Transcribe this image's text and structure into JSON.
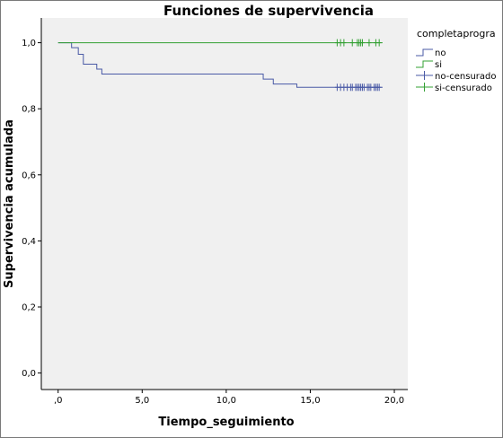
{
  "chart_data": {
    "type": "line",
    "step": true,
    "title": "Funciones de supervivencia",
    "xlabel": "Tiempo_seguimiento",
    "ylabel": "Supervivencia acumulada",
    "xlim": [
      -1.0,
      20.8
    ],
    "ylim": [
      -0.05,
      1.075
    ],
    "x_ticks": [
      0,
      5,
      10,
      15,
      20
    ],
    "x_tick_labels": [
      ",0",
      "5,0",
      "10,0",
      "15,0",
      "20,0"
    ],
    "y_ticks": [
      0,
      0.2,
      0.4,
      0.6,
      0.8,
      1.0
    ],
    "y_tick_labels": [
      "0,0",
      "0,2",
      "0,4",
      "0,6",
      "0,8",
      "1,0"
    ],
    "grid": false,
    "legend_title": "completaprogra",
    "legend_position": "right",
    "series": [
      {
        "name": "no",
        "color": "#4a5aa6",
        "marker": "line",
        "x": [
          0.0,
          0.8,
          1.2,
          1.5,
          2.3,
          2.6,
          12.2,
          12.8,
          14.2,
          19.3
        ],
        "y": [
          1.0,
          0.985,
          0.965,
          0.935,
          0.92,
          0.905,
          0.89,
          0.875,
          0.865,
          0.865
        ]
      },
      {
        "name": "si",
        "color": "#33a033",
        "marker": "line",
        "x": [
          0.0,
          19.3
        ],
        "y": [
          1.0,
          1.0
        ]
      },
      {
        "name": "no-censurado",
        "color": "#4a5aa6",
        "marker": "plus",
        "x": [
          16.6,
          16.8,
          17.0,
          17.2,
          17.4,
          17.5,
          17.7,
          17.8,
          17.9,
          18.0,
          18.1,
          18.2,
          18.4,
          18.5,
          18.6,
          18.8,
          18.9,
          19.0,
          19.1
        ],
        "y": [
          0.865,
          0.865,
          0.865,
          0.865,
          0.865,
          0.865,
          0.865,
          0.865,
          0.865,
          0.865,
          0.865,
          0.865,
          0.865,
          0.865,
          0.865,
          0.865,
          0.865,
          0.865,
          0.865
        ]
      },
      {
        "name": "si-censurado",
        "color": "#33a033",
        "marker": "plus",
        "x": [
          16.6,
          16.8,
          17.0,
          17.5,
          17.8,
          17.9,
          18.0,
          18.1,
          18.5,
          18.9,
          19.1
        ],
        "y": [
          1.0,
          1.0,
          1.0,
          1.0,
          1.0,
          1.0,
          1.0,
          1.0,
          1.0,
          1.0,
          1.0
        ]
      }
    ]
  }
}
